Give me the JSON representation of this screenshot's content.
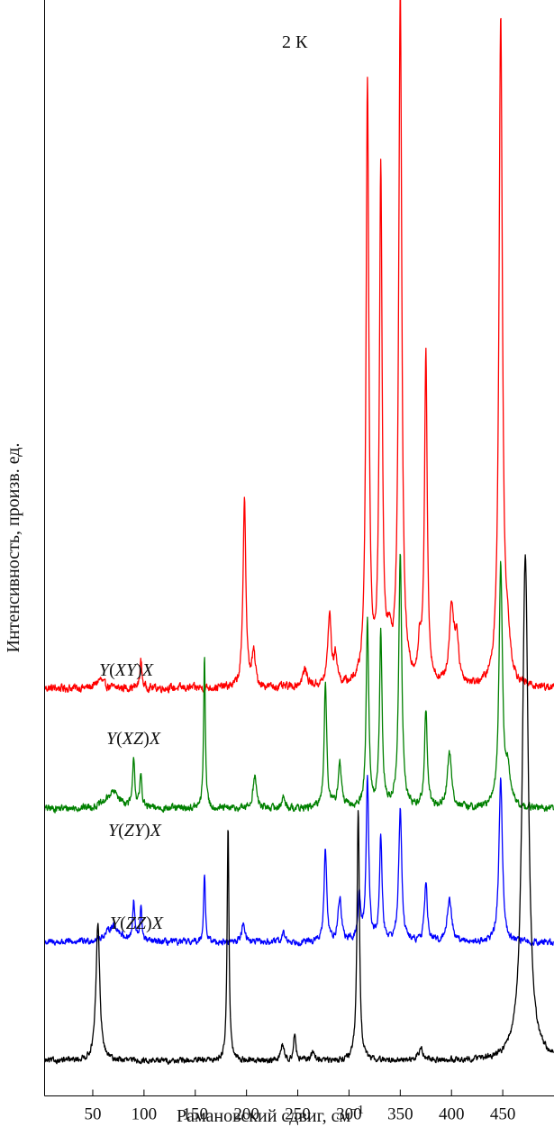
{
  "chart_data": {
    "type": "line",
    "title": "",
    "annotation": "2 К",
    "xlabel": "Рамановский сдвиг, см",
    "xlabel_superscript": "−1",
    "ylabel": "Интенсивность, произв. ед.",
    "xlim": [
      3,
      500
    ],
    "ylim": [
      0,
      100
    ],
    "xticks": [
      50,
      100,
      150,
      200,
      250,
      300,
      350,
      400,
      450
    ],
    "grid": false,
    "legend": "none",
    "series": [
      {
        "label_parts": [
          {
            "text": "Y(",
            "italic": false
          },
          {
            "text": "XY",
            "italic": true
          },
          {
            "text": ")X",
            "italic": false
          }
        ],
        "label_text": "Y(XY)X",
        "color": "#ff0000",
        "baseline": 37.2,
        "noise": 0.55,
        "peaks": [
          [
            57,
            0.8,
            4
          ],
          [
            97,
            2.5,
            1.2
          ],
          [
            198,
            17.5,
            1.6
          ],
          [
            207,
            3,
            2
          ],
          [
            257,
            1.5,
            3
          ],
          [
            281,
            6.5,
            2
          ],
          [
            287,
            2.5,
            2
          ],
          [
            318,
            55,
            1.6
          ],
          [
            331,
            46.5,
            1.6
          ],
          [
            339,
            3,
            3
          ],
          [
            350,
            63,
            1.8
          ],
          [
            369,
            3,
            2
          ],
          [
            375,
            30,
            1.6
          ],
          [
            400,
            7,
            2.5
          ],
          [
            405,
            4,
            2.5
          ],
          [
            448,
            61,
            2
          ],
          [
            455,
            3,
            3
          ]
        ]
      },
      {
        "label_parts": [
          {
            "text": "Y(",
            "italic": false
          },
          {
            "text": "XZ",
            "italic": true
          },
          {
            "text": ")X",
            "italic": false
          }
        ],
        "label_text": "Y(XZ)X",
        "color": "#008000",
        "baseline": 26.2,
        "noise": 0.5,
        "peaks": [
          [
            70,
            1.5,
            8
          ],
          [
            90,
            4.5,
            1.2
          ],
          [
            97,
            3,
            1.2
          ],
          [
            159,
            14,
            1
          ],
          [
            208,
            3,
            2
          ],
          [
            236,
            1,
            2
          ],
          [
            277,
            11.5,
            1.5
          ],
          [
            291,
            4,
            2
          ],
          [
            318,
            17,
            1.5
          ],
          [
            331,
            16,
            1.5
          ],
          [
            350,
            23,
            1.8
          ],
          [
            375,
            9,
            1.6
          ],
          [
            398,
            5,
            2.5
          ],
          [
            448,
            22,
            2
          ],
          [
            455,
            3,
            3
          ]
        ]
      },
      {
        "label_parts": [
          {
            "text": "Y(",
            "italic": false
          },
          {
            "text": "ZY",
            "italic": true
          },
          {
            "text": ")X",
            "italic": false
          }
        ],
        "label_text": "Y(ZY)X",
        "color": "#0000ff",
        "baseline": 14.0,
        "noise": 0.45,
        "peaks": [
          [
            70,
            1.5,
            8
          ],
          [
            90,
            3.5,
            1.2
          ],
          [
            97,
            3,
            1.2
          ],
          [
            159,
            6.5,
            1
          ],
          [
            197,
            1.8,
            2
          ],
          [
            236,
            0.8,
            2
          ],
          [
            277,
            8.5,
            1.5
          ],
          [
            291,
            4,
            2
          ],
          [
            310,
            4,
            1.6
          ],
          [
            318,
            15,
            1.5
          ],
          [
            331,
            9.5,
            1.5
          ],
          [
            350,
            12,
            1.8
          ],
          [
            375,
            5.5,
            1.6
          ],
          [
            398,
            4,
            2.5
          ],
          [
            448,
            15,
            2
          ]
        ]
      },
      {
        "label_parts": [
          {
            "text": "Y(",
            "italic": false
          },
          {
            "text": "ZZ",
            "italic": true
          },
          {
            "text": ")X",
            "italic": false
          }
        ],
        "label_text": "Y(ZZ)X",
        "color": "#000000",
        "baseline": 3.2,
        "noise": 0.4,
        "peaks": [
          [
            55,
            12.5,
            2.2
          ],
          [
            182,
            21.5,
            1.1
          ],
          [
            235,
            1.5,
            1.8
          ],
          [
            247,
            2.5,
            1.3
          ],
          [
            265,
            0.8,
            2
          ],
          [
            309,
            23,
            1.4
          ],
          [
            370,
            1,
            3
          ],
          [
            472,
            46,
            3.5
          ]
        ]
      }
    ]
  }
}
